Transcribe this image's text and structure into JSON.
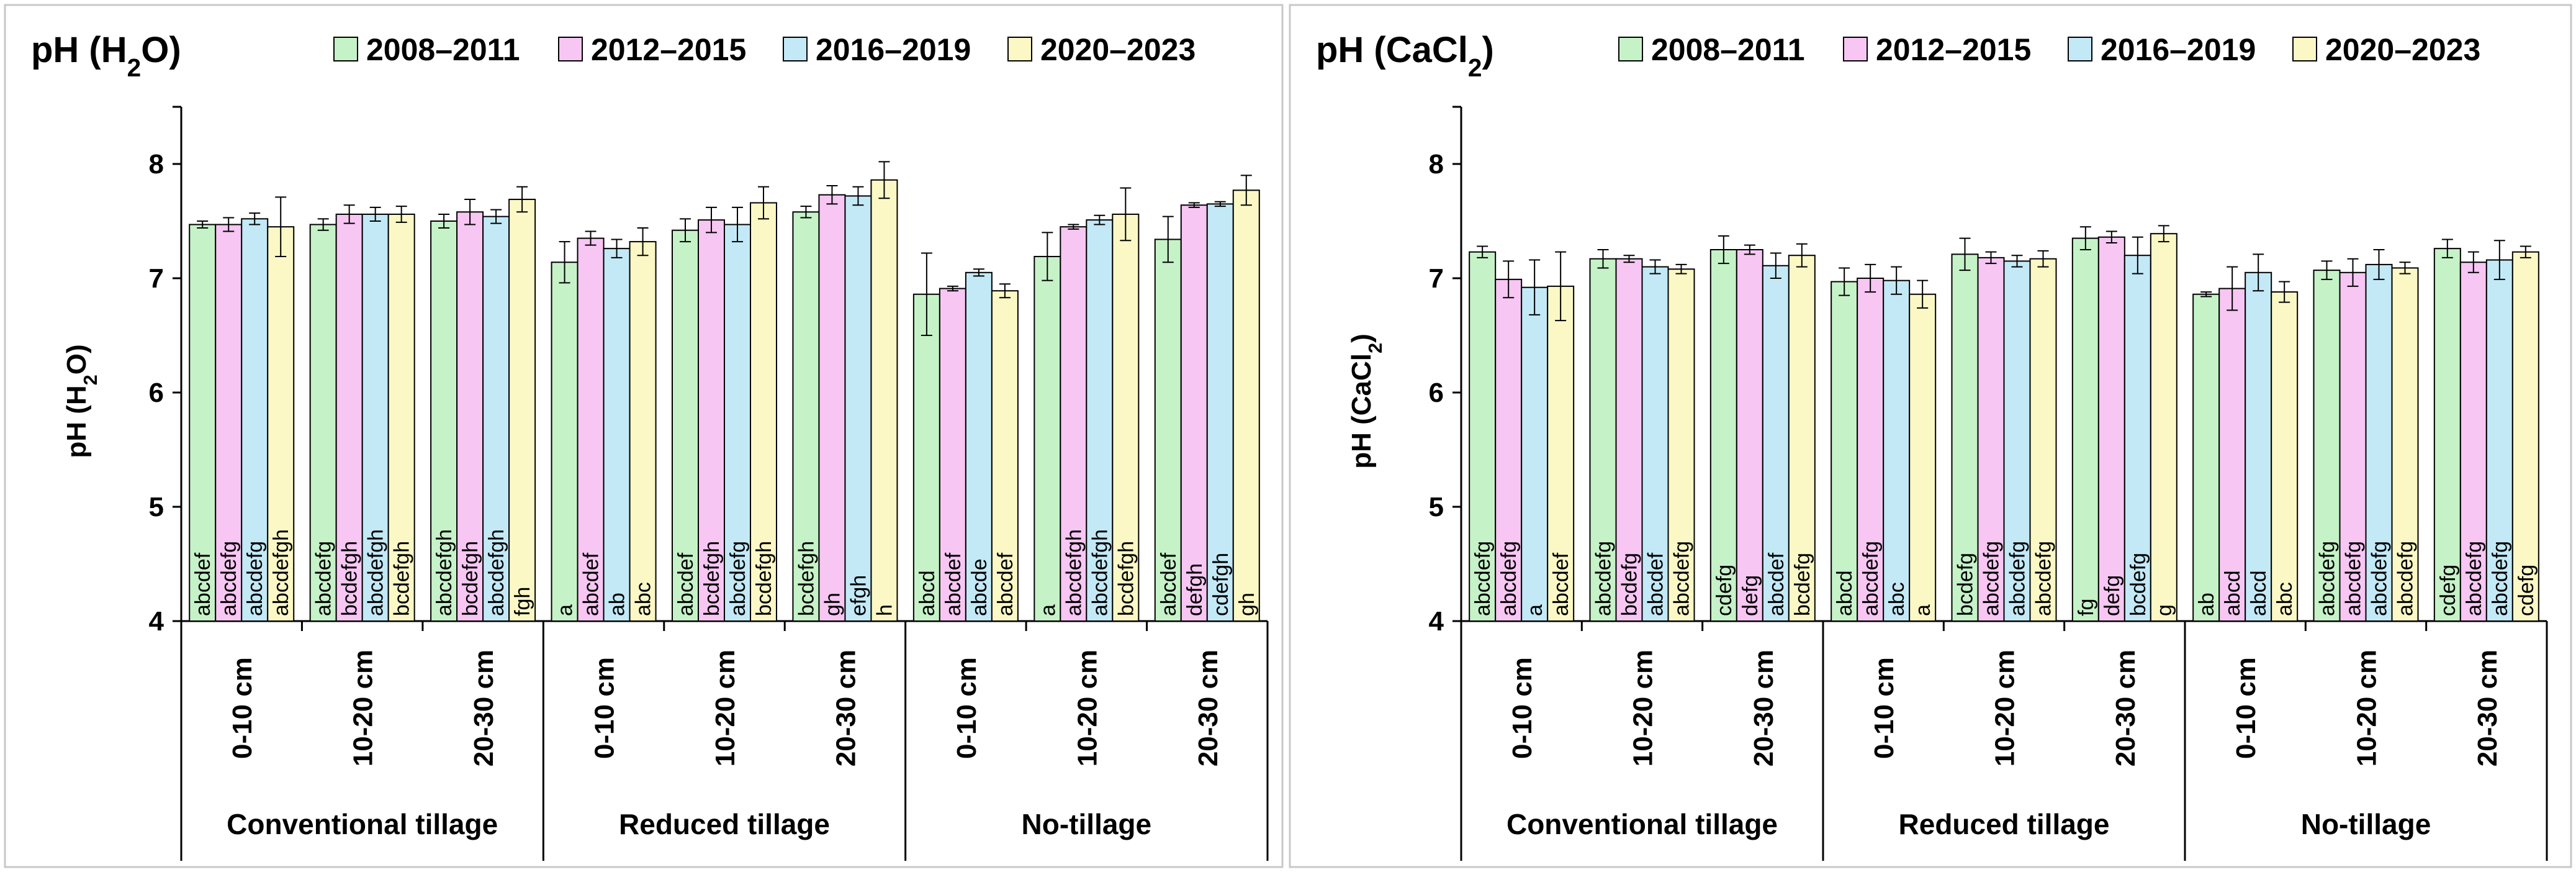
{
  "colors": {
    "series": [
      "#c6f2c8",
      "#f7c6f3",
      "#c3e9f7",
      "#fbf8c6"
    ],
    "axis": "#000000",
    "panel_border": "#c8c8c8"
  },
  "chart_data": [
    {
      "type": "bar",
      "title": "pH (H2O)",
      "title_main": "pH (H",
      "title_sub": "2",
      "title_end": "O)",
      "ylabel": "pH (H2O)",
      "ylabel_main": "pH (H",
      "ylabel_sub": "2",
      "ylabel_end": "O)",
      "ylim": [
        4,
        8.5
      ],
      "yticks": [
        "4",
        "5",
        "6",
        "7",
        "8"
      ],
      "ytick_values": [
        4,
        5,
        6,
        7,
        8
      ],
      "legend": [
        "2008–2011",
        "2012–2015",
        "2016–2019",
        "2020–2023"
      ],
      "groups": [
        "Conventional tillage",
        "Reduced tillage",
        "No-tillage"
      ],
      "categories": [
        "0-10 cm",
        "10-20 cm",
        "20-30 cm",
        "0-10 cm",
        "10-20 cm",
        "20-30 cm",
        "0-10 cm",
        "10-20 cm",
        "20-30 cm"
      ],
      "series": [
        {
          "name": "2008–2011",
          "values": [
            7.47,
            7.47,
            7.5,
            7.14,
            7.42,
            7.58,
            6.86,
            7.19,
            7.34
          ],
          "errors": [
            0.03,
            0.05,
            0.06,
            0.18,
            0.1,
            0.05,
            0.36,
            0.21,
            0.2
          ],
          "letters": [
            "abcdef",
            "abcdefg",
            "abcdefgh",
            "a",
            "abcdef",
            "bcdefgh",
            "abcd",
            "a",
            "abcdef"
          ]
        },
        {
          "name": "2012–2015",
          "values": [
            7.47,
            7.56,
            7.58,
            7.35,
            7.51,
            7.73,
            6.91,
            7.45,
            7.64
          ],
          "errors": [
            0.06,
            0.08,
            0.11,
            0.06,
            0.11,
            0.08,
            0.02,
            0.02,
            0.02
          ],
          "letters": [
            "abcdefg",
            "bcdefgh",
            "bcdefgh",
            "abcdef",
            "bcdefgh",
            "gh",
            "abcdef",
            "abcdefgh",
            "defgh"
          ]
        },
        {
          "name": "2016–2019",
          "values": [
            7.52,
            7.56,
            7.54,
            7.26,
            7.47,
            7.72,
            7.05,
            7.51,
            7.65
          ],
          "errors": [
            0.05,
            0.06,
            0.06,
            0.08,
            0.15,
            0.08,
            0.03,
            0.04,
            0.02
          ],
          "letters": [
            "abcdefg",
            "abcdefgh",
            "abcdefgh",
            "ab",
            "abcdefg",
            "efgh",
            "abcde",
            "abcdefgh",
            "cdefgh"
          ]
        },
        {
          "name": "2020–2023",
          "values": [
            7.45,
            7.56,
            7.69,
            7.32,
            7.66,
            7.86,
            6.89,
            7.56,
            7.77
          ],
          "errors": [
            0.26,
            0.07,
            0.11,
            0.12,
            0.14,
            0.16,
            0.06,
            0.23,
            0.13
          ],
          "letters": [
            "abcdefgh",
            "bcdefgh",
            "fgh",
            "abc",
            "bcdefgh",
            "h",
            "abcdef",
            "bcdefgh",
            "gh"
          ]
        }
      ]
    },
    {
      "type": "bar",
      "title": "pH (CaCl2)",
      "title_main": "pH (CaCl",
      "title_sub": "2",
      "title_end": ")",
      "ylabel": "pH (CaCl2)",
      "ylabel_main": "pH (CaCl",
      "ylabel_sub": "2",
      "ylabel_end": ")",
      "ylim": [
        4,
        8.5
      ],
      "yticks": [
        "4",
        "5",
        "6",
        "7",
        "8"
      ],
      "ytick_values": [
        4,
        5,
        6,
        7,
        8
      ],
      "legend": [
        "2008–2011",
        "2012–2015",
        "2016–2019",
        "2020–2023"
      ],
      "groups": [
        "Conventional tillage",
        "Reduced tillage",
        "No-tillage"
      ],
      "categories": [
        "0-10 cm",
        "10-20 cm",
        "20-30 cm",
        "0-10 cm",
        "10-20 cm",
        "20-30 cm",
        "0-10 cm",
        "10-20 cm",
        "20-30 cm"
      ],
      "series": [
        {
          "name": "2008–2011",
          "values": [
            7.23,
            7.17,
            7.25,
            6.97,
            7.21,
            7.35,
            6.86,
            7.07,
            7.26
          ],
          "errors": [
            0.05,
            0.08,
            0.12,
            0.12,
            0.14,
            0.1,
            0.02,
            0.08,
            0.08
          ],
          "letters": [
            "abcdefg",
            "abcdefg",
            "cdefg",
            "abcd",
            "bcdefg",
            "fg",
            "ab",
            "abcdefg",
            "cdefg"
          ]
        },
        {
          "name": "2012–2015",
          "values": [
            6.99,
            7.17,
            7.25,
            7.0,
            7.18,
            7.36,
            6.91,
            7.05,
            7.14
          ],
          "errors": [
            0.16,
            0.03,
            0.04,
            0.12,
            0.05,
            0.05,
            0.19,
            0.12,
            0.09
          ],
          "letters": [
            "abcdefg",
            "bcdefg",
            "defg",
            "abcdefg",
            "abcdefg",
            "defg",
            "abcd",
            "abcdefg",
            "abcdefg"
          ]
        },
        {
          "name": "2016–2019",
          "values": [
            6.92,
            7.1,
            7.11,
            6.98,
            7.15,
            7.2,
            7.05,
            7.12,
            7.16
          ],
          "errors": [
            0.24,
            0.06,
            0.11,
            0.12,
            0.05,
            0.16,
            0.16,
            0.13,
            0.17
          ],
          "letters": [
            "a",
            "abcdef",
            "abcdef",
            "abc",
            "abcdefg",
            "bcdefg",
            "abcd",
            "abcdefg",
            "abcdefg"
          ]
        },
        {
          "name": "2020–2023",
          "values": [
            6.93,
            7.08,
            7.2,
            6.86,
            7.17,
            7.39,
            6.88,
            7.09,
            7.23
          ],
          "errors": [
            0.3,
            0.04,
            0.1,
            0.12,
            0.07,
            0.07,
            0.09,
            0.05,
            0.05
          ],
          "letters": [
            "abcdef",
            "abcdefg",
            "bcdefg",
            "a",
            "abcdefg",
            "g",
            "abc",
            "abcdefg",
            "cdefg"
          ]
        }
      ]
    }
  ]
}
